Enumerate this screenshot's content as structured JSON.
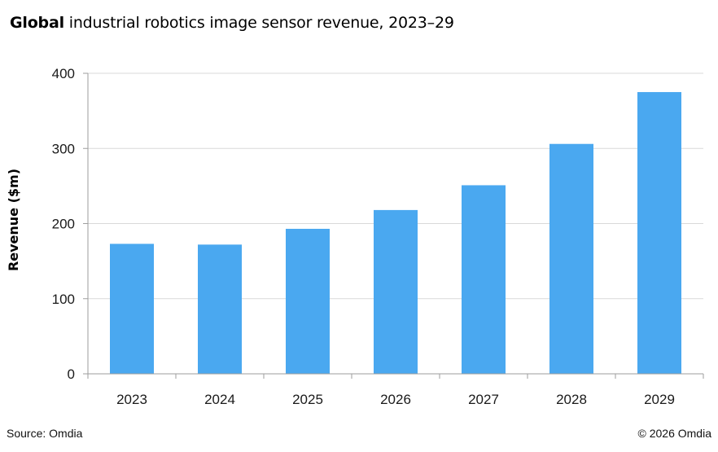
{
  "header": {
    "title_bold": "Global",
    "title_rest": "industrial robotics image sensor revenue, 2023–29"
  },
  "footer": {
    "source": "Source: Omdia",
    "copyright": "© 2026 Omdia"
  },
  "colors": {
    "bar": "#4AA8F0",
    "gridline": "#D9D9D9",
    "axis": "#9E9E9E"
  },
  "chart_data": {
    "type": "bar",
    "title": "Global industrial robotics image sensor revenue, 2023–29",
    "xlabel": "",
    "ylabel": "Revenue ($m)",
    "categories": [
      "2023",
      "2024",
      "2025",
      "2026",
      "2027",
      "2028",
      "2029"
    ],
    "values": [
      173,
      172,
      193,
      218,
      251,
      306,
      375
    ],
    "ylim": [
      0,
      400
    ],
    "yticks": [
      0,
      100,
      200,
      300,
      400
    ],
    "grid": true,
    "legend": "none"
  }
}
